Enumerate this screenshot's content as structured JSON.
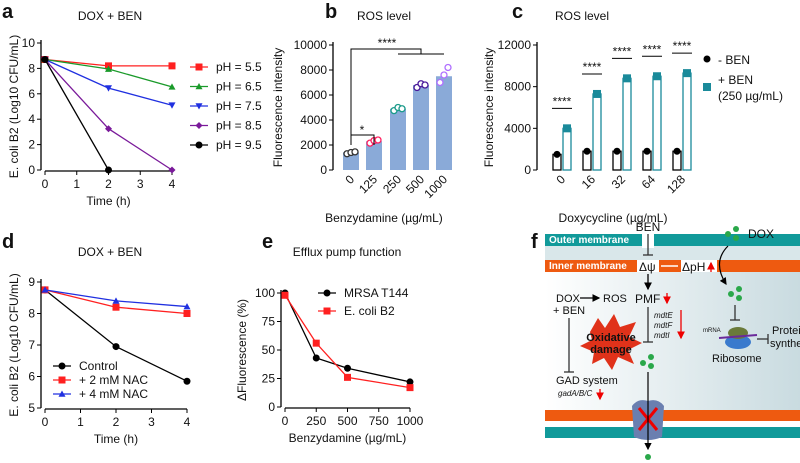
{
  "panel_labels": [
    "a",
    "b",
    "c",
    "d",
    "e",
    "f"
  ],
  "chart_data": [
    {
      "panel": "a",
      "type": "line",
      "title": "DOX + BEN",
      "xlabel": "Time (h)",
      "ylabel": "E. coli B2 (Log10 CFU/mL)",
      "xlim": [
        0,
        4
      ],
      "ylim": [
        0,
        10
      ],
      "xticks": [
        "0",
        "1",
        "2",
        "3",
        "4"
      ],
      "yticks": [
        "0",
        "2",
        "4",
        "6",
        "8",
        "10"
      ],
      "legend_position": "right",
      "series": [
        {
          "name": "pH = 5.5",
          "color": "#ff2020",
          "marker": "square",
          "x": [
            0,
            2,
            4
          ],
          "y": [
            8.7,
            8.2,
            8.2
          ]
        },
        {
          "name": "pH = 6.5",
          "color": "#1a9a2a",
          "marker": "triangle-up",
          "x": [
            0,
            2,
            4
          ],
          "y": [
            8.7,
            7.95,
            6.55
          ]
        },
        {
          "name": "pH = 7.5",
          "color": "#2030e0",
          "marker": "triangle-down",
          "x": [
            0,
            2,
            4
          ],
          "y": [
            8.7,
            6.45,
            5.1
          ]
        },
        {
          "name": "pH = 8.5",
          "color": "#7a1a9a",
          "marker": "diamond",
          "x": [
            0,
            2,
            4
          ],
          "y": [
            8.7,
            3.25,
            0
          ]
        },
        {
          "name": "pH = 9.5",
          "color": "#000000",
          "marker": "circle",
          "x": [
            0,
            2
          ],
          "y": [
            8.7,
            0
          ]
        }
      ]
    },
    {
      "panel": "b",
      "type": "bar",
      "title": "ROS level",
      "xlabel": "Benzydamine (µg/mL)",
      "ylabel": "Fluorescence intensity",
      "ylim": [
        0,
        10000
      ],
      "yticks": [
        "0",
        "2000",
        "4000",
        "6000",
        "8000",
        "10000"
      ],
      "categories": [
        "0",
        "125",
        "250",
        "500",
        "1000"
      ],
      "values": [
        1400,
        2300,
        4900,
        6800,
        7500
      ],
      "bar_color": "#8aaad8",
      "point_colors": [
        "#333333",
        "#ff2060",
        "#1a9a8a",
        "#4a1a9a",
        "#b070ff"
      ],
      "points": [
        [
          1300,
          1400,
          1450
        ],
        [
          2150,
          2350,
          2400
        ],
        [
          4750,
          5000,
          4900
        ],
        [
          6600,
          6900,
          6800
        ],
        [
          7000,
          7600,
          8200
        ]
      ],
      "annotations": [
        {
          "text": "*",
          "between": [
            "0",
            "125"
          ]
        },
        {
          "text": "****",
          "between": [
            "0",
            "250-1000"
          ]
        }
      ]
    },
    {
      "panel": "c",
      "type": "bar",
      "title": "ROS level",
      "xlabel": "Doxycycline (µg/mL)",
      "ylabel": "Fluorescence intensity",
      "ylim": [
        0,
        12000
      ],
      "yticks": [
        "0",
        "4000",
        "8000",
        "12000"
      ],
      "categories": [
        "0",
        "16",
        "32",
        "64",
        "128"
      ],
      "legend_position": "right",
      "series": [
        {
          "name": "- BEN",
          "color": "#000000",
          "values": [
            1500,
            1800,
            1800,
            1800,
            1800
          ]
        },
        {
          "name": "+ BEN",
          "name2": "(250 µg/mL)",
          "color": "#1a8a9a",
          "values": [
            4000,
            7300,
            8800,
            9000,
            9300
          ]
        }
      ],
      "annotations": [
        "****",
        "****",
        "****",
        "****",
        "****"
      ]
    },
    {
      "panel": "d",
      "type": "line",
      "title": "DOX + BEN",
      "xlabel": "Time (h)",
      "ylabel": "E. coli B2 (Log10 CFU/mL)",
      "xlim": [
        0,
        4
      ],
      "ylim": [
        5,
        9
      ],
      "xticks": [
        "0",
        "1",
        "2",
        "3",
        "4"
      ],
      "yticks": [
        "5",
        "6",
        "7",
        "8",
        "9"
      ],
      "legend_position": "bottom-left",
      "series": [
        {
          "name": "Control",
          "color": "#000000",
          "marker": "circle",
          "x": [
            0,
            2,
            4
          ],
          "y": [
            8.75,
            6.95,
            5.85
          ]
        },
        {
          "name": "+ 2 mM NAC",
          "color": "#ff2020",
          "marker": "square",
          "x": [
            0,
            2,
            4
          ],
          "y": [
            8.75,
            8.2,
            8.0
          ]
        },
        {
          "name": "+ 4 mM NAC",
          "color": "#2030e0",
          "marker": "triangle-up",
          "x": [
            0,
            2,
            4
          ],
          "y": [
            8.75,
            8.4,
            8.22
          ]
        }
      ]
    },
    {
      "panel": "e",
      "type": "line",
      "title": "Efflux pump function",
      "xlabel": "Benzydamine (µg/mL)",
      "ylabel": "ΔFluorescence (%)",
      "xlim": [
        0,
        1000
      ],
      "ylim": [
        0,
        100
      ],
      "xticks": [
        "0",
        "250",
        "500",
        "750",
        "1000"
      ],
      "yticks": [
        "0",
        "25",
        "50",
        "75",
        "100"
      ],
      "legend_position": "top-right",
      "series": [
        {
          "name": "MRSA T144",
          "color": "#000000",
          "marker": "circle",
          "x": [
            0,
            250,
            500,
            1000
          ],
          "y": [
            100,
            43,
            34,
            22
          ]
        },
        {
          "name": "E. coli B2",
          "color": "#ff2020",
          "marker": "square",
          "x": [
            0,
            250,
            500,
            1000
          ],
          "y": [
            98,
            56,
            26,
            17
          ]
        }
      ]
    }
  ],
  "diagram": {
    "outer_membrane": "Outer membrane",
    "inner_membrane": "Inner membrane",
    "ben": "BEN",
    "dox": "DOX",
    "delta_psi": "Δψ",
    "delta_ph": "ΔpH",
    "dox_ben_1": "DOX",
    "dox_ben_2": "+ BEN",
    "ros": "ROS",
    "pmf": "PMF",
    "genes": [
      "mdtE",
      "mdtF",
      "mdtI"
    ],
    "damage_1": "Oxidative",
    "damage_2": "damage",
    "gad_system": "GAD system",
    "gad_genes": "gadA/B/C",
    "mrna": "mRNA",
    "ribosome": "Ribosome",
    "protein_1": "Protein",
    "protein_2": "synthesis"
  }
}
